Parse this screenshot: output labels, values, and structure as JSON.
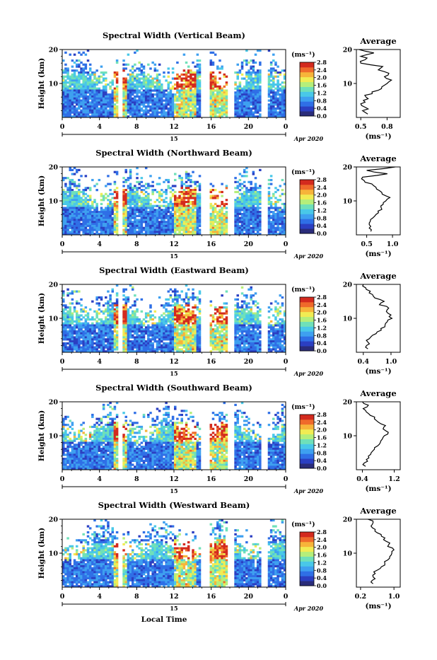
{
  "chart_data": {
    "type": "heatmap",
    "colors": [
      "#2a2c7a",
      "#2b3fc2",
      "#2f6fe6",
      "#3ea0f0",
      "#49c8e8",
      "#6fe0b9",
      "#b5ee7a",
      "#f1ec53",
      "#f7b43a",
      "#ef6a2b",
      "#d32a1e"
    ],
    "gap_hours": [
      [
        6.0,
        6.4
      ],
      [
        15.0,
        15.9
      ],
      [
        17.7,
        18.4
      ],
      [
        21.3,
        22.1
      ]
    ],
    "panels": [
      {
        "title": "Spectral Width (Vertical Beam)",
        "ylabel": "Height (km)",
        "yticks": [
          "20",
          "10"
        ],
        "ylim": [
          0,
          20
        ],
        "xticks": [
          "0",
          "4",
          "8",
          "12",
          "16",
          "20",
          "0"
        ],
        "xlim": [
          0,
          24
        ],
        "date_label": "15",
        "month_label": "Apr 2020",
        "colorbar_unit": "(ms⁻¹)",
        "colorbar_ticks": [
          "0.0",
          "0.4",
          "0.8",
          "1.2",
          "1.6",
          "2.0",
          "2.4",
          "2.8"
        ],
        "colorbar_range": [
          0.0,
          2.8
        ],
        "profile_title": "Average",
        "profile_xticks": [
          "0.5",
          "0.8"
        ],
        "profile_xlim": [
          0.45,
          0.95
        ],
        "profile_xlabel": "(ms⁻¹)",
        "profile": {
          "height": [
            1,
            2,
            3,
            4,
            5,
            6,
            7,
            8,
            9,
            10,
            11,
            12,
            13,
            14,
            15,
            16,
            17,
            18,
            19,
            20
          ],
          "width": [
            0.58,
            0.52,
            0.55,
            0.5,
            0.53,
            0.56,
            0.63,
            0.7,
            0.74,
            0.8,
            0.85,
            0.77,
            0.82,
            0.7,
            0.75,
            0.5,
            0.55,
            0.5,
            0.65,
            0.48
          ]
        }
      },
      {
        "title": "Spectral Width (Northward Beam)",
        "ylabel": "Height (km)",
        "yticks": [
          "20",
          "10"
        ],
        "ylim": [
          0,
          20
        ],
        "xticks": [
          "0",
          "4",
          "8",
          "12",
          "16",
          "20",
          "0"
        ],
        "xlim": [
          0,
          24
        ],
        "date_label": "15",
        "month_label": "Apr 2020",
        "colorbar_unit": "(ms⁻¹)",
        "colorbar_ticks": [
          "0.0",
          "0.4",
          "0.8",
          "1.2",
          "1.6",
          "2.0",
          "2.4",
          "2.8"
        ],
        "colorbar_range": [
          0.0,
          2.8
        ],
        "profile_title": "Average",
        "profile_xticks": [
          "0.5",
          "1.0"
        ],
        "profile_xlim": [
          0.3,
          1.15
        ],
        "profile_xlabel": "(ms⁻¹)",
        "profile": {
          "height": [
            1,
            2,
            3,
            4,
            5,
            6,
            7,
            8,
            9,
            10,
            11,
            12,
            13,
            14,
            15,
            16,
            17,
            18,
            19,
            20
          ],
          "width": [
            0.58,
            0.55,
            0.55,
            0.57,
            0.62,
            0.68,
            0.72,
            0.78,
            0.82,
            0.87,
            0.95,
            0.8,
            0.75,
            0.68,
            0.6,
            0.45,
            0.42,
            0.9,
            0.5,
            1.05
          ]
        }
      },
      {
        "title": "Spectral Width (Eastward Beam)",
        "ylabel": "Height (km)",
        "yticks": [
          "20",
          "10"
        ],
        "ylim": [
          0,
          20
        ],
        "xticks": [
          "0",
          "4",
          "8",
          "12",
          "16",
          "20",
          "0"
        ],
        "xlim": [
          0,
          24
        ],
        "date_label": "15",
        "month_label": "Apr 2020",
        "colorbar_unit": "(ms⁻¹)",
        "colorbar_ticks": [
          "0.0",
          "0.4",
          "0.8",
          "1.2",
          "1.6",
          "2.0",
          "2.4",
          "2.8"
        ],
        "colorbar_range": [
          0.0,
          2.8
        ],
        "profile_title": "Average",
        "profile_xticks": [
          "0.4",
          "1.0"
        ],
        "profile_xlim": [
          0.25,
          1.2
        ],
        "profile_xlabel": "(ms⁻¹)",
        "profile": {
          "height": [
            1,
            2,
            3,
            4,
            5,
            6,
            7,
            8,
            9,
            10,
            11,
            12,
            13,
            14,
            15,
            16,
            17,
            18,
            19,
            20
          ],
          "width": [
            0.5,
            0.47,
            0.5,
            0.53,
            0.6,
            0.7,
            0.78,
            0.87,
            0.92,
            1.02,
            1.0,
            0.9,
            0.95,
            0.75,
            0.85,
            0.65,
            0.6,
            0.55,
            0.45,
            0.4
          ]
        }
      },
      {
        "title": "Spectral Width (Southward Beam)",
        "ylabel": "Height (km)",
        "yticks": [
          "20",
          "10"
        ],
        "ylim": [
          0,
          20
        ],
        "xticks": [
          "0",
          "4",
          "8",
          "12",
          "16",
          "20",
          "0"
        ],
        "xlim": [
          0,
          24
        ],
        "date_label": "15",
        "month_label": "Apr 2020",
        "colorbar_unit": "(ms⁻¹)",
        "colorbar_ticks": [
          "0.0",
          "0.4",
          "0.8",
          "1.2",
          "1.6",
          "2.0",
          "2.4",
          "2.8"
        ],
        "colorbar_range": [
          0.0,
          2.8
        ],
        "profile_title": "Average",
        "profile_xticks": [
          "0.4",
          "1.2"
        ],
        "profile_xlim": [
          0.25,
          1.35
        ],
        "profile_xlabel": "(ms⁻¹)",
        "profile": {
          "height": [
            1,
            2,
            3,
            4,
            5,
            6,
            7,
            8,
            9,
            10,
            11,
            12,
            13,
            14,
            15,
            16,
            17,
            18,
            19,
            20
          ],
          "width": [
            0.48,
            0.45,
            0.5,
            0.55,
            0.62,
            0.7,
            0.78,
            0.85,
            0.9,
            0.95,
            1.05,
            0.92,
            0.98,
            0.8,
            0.7,
            0.6,
            0.5,
            0.42,
            0.55,
            0.4
          ]
        }
      },
      {
        "title": "Spectral Width (Westward Beam)",
        "ylabel": "Height (km)",
        "yticks": [
          "20",
          "10"
        ],
        "ylim": [
          0,
          20
        ],
        "xticks": [
          "0",
          "4",
          "8",
          "12",
          "16",
          "20",
          "0"
        ],
        "xlim": [
          0,
          24
        ],
        "date_label": "15",
        "month_label": "Apr 2020",
        "colorbar_unit": "(ms⁻¹)",
        "colorbar_ticks": [
          "0.0",
          "0.4",
          "0.8",
          "1.2",
          "1.6",
          "2.0",
          "2.4",
          "2.8"
        ],
        "colorbar_range": [
          0.0,
          2.8
        ],
        "profile_title": "Average",
        "profile_xticks": [
          "0.2",
          "1.0"
        ],
        "profile_xlim": [
          0.1,
          1.15
        ],
        "profile_xlabel": "(ms⁻¹)",
        "profile": {
          "height": [
            1,
            2,
            3,
            4,
            5,
            6,
            7,
            8,
            9,
            10,
            11,
            12,
            13,
            14,
            15,
            16,
            17,
            18,
            19,
            20
          ],
          "width": [
            0.5,
            0.48,
            0.5,
            0.55,
            0.6,
            0.7,
            0.78,
            0.85,
            0.9,
            0.95,
            1.0,
            0.85,
            0.9,
            0.75,
            0.7,
            0.6,
            0.55,
            0.45,
            0.5,
            0.38
          ]
        }
      }
    ],
    "xlabel": "Local Time"
  }
}
